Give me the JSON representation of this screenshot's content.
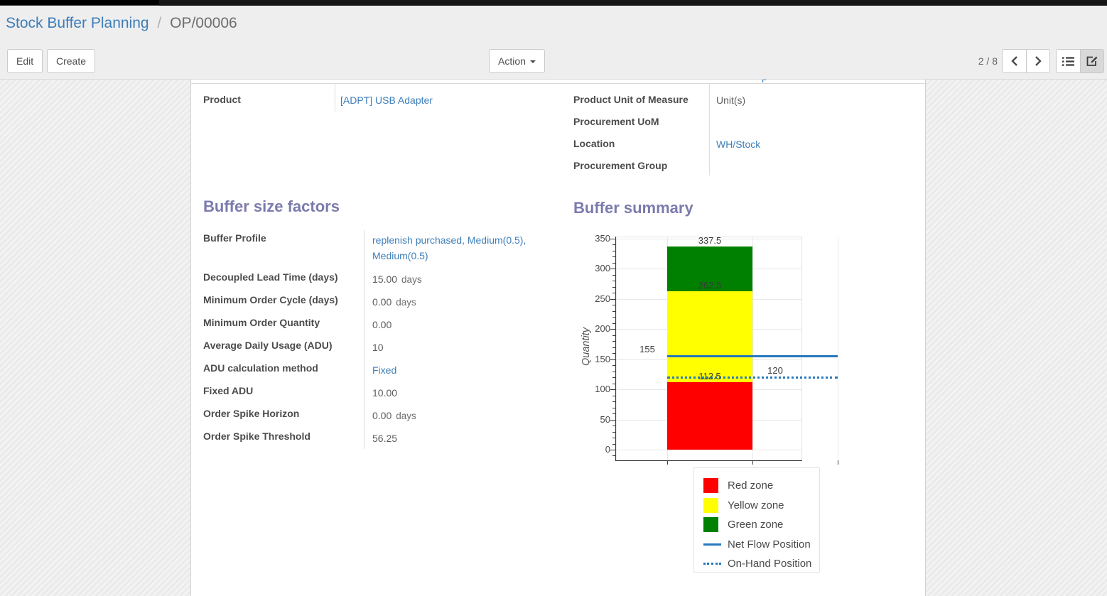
{
  "breadcrumb": {
    "parent": "Stock Buffer Planning",
    "separator": "/",
    "current": "OP/00006"
  },
  "toolbar": {
    "edit": "Edit",
    "create": "Create",
    "action": "Action",
    "pager": "2 / 8"
  },
  "form": {
    "remnant": "p y",
    "product_left": [
      {
        "label": "Product",
        "value": "[ADPT] USB Adapter",
        "link": true
      }
    ],
    "product_right": [
      {
        "label": "Product Unit of Measure",
        "value": "Unit(s)",
        "link": false
      },
      {
        "label": "Procurement UoM",
        "value": "",
        "link": false
      },
      {
        "label": "Location",
        "value": "WH/Stock",
        "link": true
      },
      {
        "label": "Procurement Group",
        "value": "",
        "link": false
      }
    ],
    "buffer_factors": {
      "title": "Buffer size factors",
      "rows": [
        {
          "label": "Buffer Profile",
          "value": "replenish purchased, Medium(0.5), Medium(0.5)",
          "link": true
        },
        {
          "label": "Decoupled Lead Time (days)",
          "value": "15.00",
          "suffix": "days"
        },
        {
          "label": "Minimum Order Cycle (days)",
          "value": "0.00",
          "suffix": "days"
        },
        {
          "label": "Minimum Order Quantity",
          "value": "0.00"
        },
        {
          "label": "Average Daily Usage (ADU)",
          "value": "10"
        },
        {
          "label": "ADU calculation method",
          "value": "Fixed",
          "link": true
        },
        {
          "label": "Fixed ADU",
          "value": "10.00"
        },
        {
          "label": "Order Spike Horizon",
          "value": "0.00",
          "suffix": "days"
        },
        {
          "label": "Order Spike Threshold",
          "value": "56.25"
        }
      ]
    },
    "buffer_summary": {
      "title": "Buffer summary"
    }
  },
  "chart_data": {
    "type": "bar",
    "title": "Buffer summary",
    "xlabel": "",
    "ylabel": "Quantity",
    "ylim": [
      0,
      350
    ],
    "ytick_step": 50,
    "minor_tick_step": 10,
    "grid": true,
    "zones": [
      {
        "name": "Red zone",
        "from": 0,
        "to": 112.5,
        "color": "#ff0000"
      },
      {
        "name": "Yellow zone",
        "from": 112.5,
        "to": 262.5,
        "color": "#ffff00"
      },
      {
        "name": "Green zone",
        "from": 262.5,
        "to": 337.5,
        "color": "#008000"
      }
    ],
    "bar_labels": [
      "337.5",
      "262.5",
      "112.5"
    ],
    "lines": [
      {
        "name": "Net Flow Position",
        "value": 155,
        "style": "solid",
        "color": "#2778be",
        "label": "155",
        "label_side": "left"
      },
      {
        "name": "On-Hand Position",
        "value": 120,
        "style": "dotted",
        "color": "#2778be",
        "label": "120",
        "label_side": "right"
      }
    ],
    "legend_position": "below-right",
    "legend": [
      {
        "label": "Red zone",
        "swatch": "box",
        "color": "#ff0000"
      },
      {
        "label": "Yellow zone",
        "swatch": "box",
        "color": "#ffff00"
      },
      {
        "label": "Green zone",
        "swatch": "box",
        "color": "#008000"
      },
      {
        "label": "Net Flow Position",
        "swatch": "line",
        "color": "#2778be"
      },
      {
        "label": "On-Hand Position",
        "swatch": "dotted",
        "color": "#2778be"
      }
    ],
    "toolbar_icons": [
      "bokeh-logo",
      "pan-tool",
      "box-zoom-tool",
      "wheel-zoom-tool",
      "save-tool",
      "reset-tool",
      "help-tool"
    ],
    "active_tools": [
      "pan-tool",
      "wheel-zoom-tool"
    ]
  }
}
